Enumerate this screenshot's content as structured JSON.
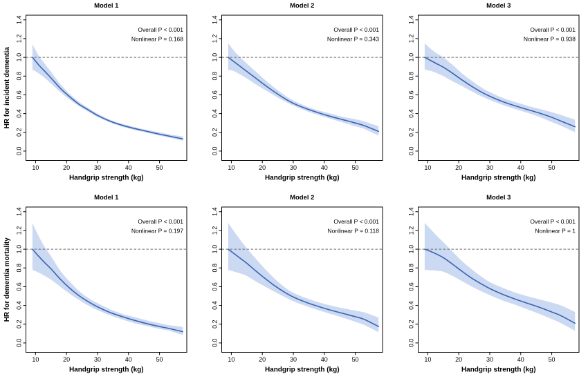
{
  "figure": {
    "background": "#ffffff",
    "layout": "2 rows x 3 columns of restricted cubic spline panels"
  },
  "colors": {
    "curve_line": "#3a63b2",
    "confidence_band": "#cbd9f2",
    "reference_line": "#6e6e6e",
    "axis": "#000000",
    "text": "#000000"
  },
  "shared": {
    "xlabel": "Handgrip strength (kg)",
    "x_ticks": [
      10,
      20,
      30,
      40,
      50
    ],
    "y_ticks": [
      0.0,
      0.2,
      0.4,
      0.6,
      0.8,
      1.0,
      1.2,
      1.4
    ],
    "xlim": [
      6.9,
      58.8
    ],
    "ylim": [
      -0.1,
      1.45
    ],
    "reference_y": 1.0
  },
  "chart_data": [
    {
      "type": "line",
      "title": "Model 1",
      "row": 0,
      "col": 0,
      "ylabel": "HR for incident dementia",
      "xlabel": "Handgrip strength (kg)",
      "overall_p": "Overall P < 0.001",
      "nonlinear_p": "Nonlinear P = 0.168",
      "x": [
        9,
        11,
        13,
        15,
        18,
        21,
        24,
        27,
        30,
        34,
        38,
        42,
        46,
        50,
        53,
        57.5
      ],
      "hr": [
        1.0,
        0.92,
        0.85,
        0.78,
        0.67,
        0.58,
        0.5,
        0.44,
        0.38,
        0.32,
        0.275,
        0.24,
        0.21,
        0.18,
        0.16,
        0.13
      ],
      "ci_lower": [
        0.87,
        0.83,
        0.78,
        0.72,
        0.63,
        0.55,
        0.48,
        0.42,
        0.365,
        0.305,
        0.26,
        0.225,
        0.195,
        0.165,
        0.145,
        0.11
      ],
      "ci_upper": [
        1.14,
        1.02,
        0.93,
        0.845,
        0.715,
        0.61,
        0.525,
        0.46,
        0.4,
        0.335,
        0.29,
        0.255,
        0.225,
        0.2,
        0.18,
        0.155
      ]
    },
    {
      "type": "line",
      "title": "Model 2",
      "row": 0,
      "col": 1,
      "ylabel": "",
      "xlabel": "Handgrip strength (kg)",
      "overall_p": "Overall P < 0.001",
      "nonlinear_p": "Nonlinear P = 0.343",
      "x": [
        9,
        11,
        13,
        15,
        18,
        21,
        24,
        27,
        30,
        34,
        38,
        42,
        46,
        50,
        53,
        57.5
      ],
      "hr": [
        1.0,
        0.95,
        0.9,
        0.85,
        0.775,
        0.7,
        0.63,
        0.565,
        0.51,
        0.455,
        0.41,
        0.37,
        0.335,
        0.3,
        0.27,
        0.21
      ],
      "ci_lower": [
        0.87,
        0.85,
        0.815,
        0.775,
        0.71,
        0.65,
        0.59,
        0.535,
        0.485,
        0.43,
        0.385,
        0.345,
        0.305,
        0.265,
        0.235,
        0.165
      ],
      "ci_upper": [
        1.15,
        1.065,
        0.995,
        0.935,
        0.845,
        0.755,
        0.675,
        0.6,
        0.54,
        0.48,
        0.435,
        0.4,
        0.365,
        0.34,
        0.315,
        0.265
      ]
    },
    {
      "type": "line",
      "title": "Model 3",
      "row": 0,
      "col": 2,
      "ylabel": "",
      "xlabel": "Handgrip strength (kg)",
      "overall_p": "Overall P < 0.001",
      "nonlinear_p": "Nonlinear P = 0.938",
      "x": [
        9,
        11,
        13,
        15,
        18,
        21,
        24,
        27,
        30,
        34,
        38,
        42,
        46,
        50,
        53,
        57.5
      ],
      "hr": [
        1.0,
        0.965,
        0.93,
        0.895,
        0.83,
        0.76,
        0.695,
        0.635,
        0.585,
        0.53,
        0.485,
        0.445,
        0.405,
        0.36,
        0.32,
        0.26
      ],
      "ci_lower": [
        0.87,
        0.855,
        0.83,
        0.8,
        0.745,
        0.695,
        0.64,
        0.59,
        0.545,
        0.495,
        0.45,
        0.41,
        0.365,
        0.31,
        0.27,
        0.2
      ],
      "ci_upper": [
        1.15,
        1.09,
        1.04,
        1.0,
        0.92,
        0.83,
        0.755,
        0.685,
        0.63,
        0.57,
        0.525,
        0.485,
        0.45,
        0.415,
        0.385,
        0.335
      ]
    },
    {
      "type": "line",
      "title": "Model 1",
      "row": 1,
      "col": 0,
      "ylabel": "HR for dementia mortality",
      "xlabel": "Handgrip strength (kg)",
      "overall_p": "Overall P < 0.001",
      "nonlinear_p": "Nonlinear P = 0.197",
      "x": [
        9,
        11,
        13,
        15,
        18,
        21,
        24,
        27,
        30,
        34,
        38,
        42,
        46,
        50,
        53,
        57.5
      ],
      "hr": [
        1.0,
        0.925,
        0.855,
        0.79,
        0.68,
        0.585,
        0.505,
        0.44,
        0.385,
        0.325,
        0.28,
        0.24,
        0.205,
        0.175,
        0.155,
        0.12
      ],
      "ci_lower": [
        0.78,
        0.75,
        0.715,
        0.675,
        0.6,
        0.525,
        0.46,
        0.4,
        0.35,
        0.295,
        0.25,
        0.21,
        0.18,
        0.15,
        0.13,
        0.085
      ],
      "ci_upper": [
        1.28,
        1.14,
        1.02,
        0.925,
        0.77,
        0.655,
        0.555,
        0.48,
        0.425,
        0.36,
        0.31,
        0.275,
        0.24,
        0.21,
        0.19,
        0.17
      ]
    },
    {
      "type": "line",
      "title": "Model 2",
      "row": 1,
      "col": 1,
      "ylabel": "",
      "xlabel": "Handgrip strength (kg)",
      "overall_p": "Overall P < 0.001",
      "nonlinear_p": "Nonlinear P = 0.118",
      "x": [
        9,
        11,
        13,
        15,
        18,
        21,
        24,
        27,
        30,
        34,
        38,
        42,
        46,
        50,
        53,
        57.5
      ],
      "hr": [
        1.0,
        0.95,
        0.9,
        0.85,
        0.765,
        0.685,
        0.61,
        0.545,
        0.49,
        0.435,
        0.39,
        0.35,
        0.315,
        0.28,
        0.25,
        0.175
      ],
      "ci_lower": [
        0.78,
        0.76,
        0.74,
        0.715,
        0.655,
        0.6,
        0.545,
        0.495,
        0.445,
        0.395,
        0.35,
        0.31,
        0.27,
        0.225,
        0.19,
        0.115
      ],
      "ci_upper": [
        1.28,
        1.185,
        1.095,
        1.01,
        0.895,
        0.785,
        0.685,
        0.6,
        0.535,
        0.48,
        0.435,
        0.4,
        0.37,
        0.345,
        0.325,
        0.27
      ]
    },
    {
      "type": "line",
      "title": "Model 3",
      "row": 1,
      "col": 2,
      "ylabel": "",
      "xlabel": "Handgrip strength (kg)",
      "overall_p": "Overall P < 0.001",
      "nonlinear_p": "Nonlinear P = 1",
      "x": [
        9,
        11,
        13,
        15,
        18,
        21,
        24,
        27,
        30,
        34,
        38,
        42,
        46,
        50,
        53,
        57.5
      ],
      "hr": [
        1.0,
        0.975,
        0.945,
        0.91,
        0.84,
        0.765,
        0.695,
        0.635,
        0.58,
        0.52,
        0.47,
        0.425,
        0.38,
        0.33,
        0.29,
        0.21
      ],
      "ci_lower": [
        0.78,
        0.775,
        0.77,
        0.76,
        0.715,
        0.66,
        0.605,
        0.555,
        0.51,
        0.455,
        0.41,
        0.36,
        0.31,
        0.255,
        0.21,
        0.13
      ],
      "ci_upper": [
        1.28,
        1.21,
        1.14,
        1.075,
        0.975,
        0.875,
        0.79,
        0.715,
        0.65,
        0.59,
        0.54,
        0.5,
        0.465,
        0.43,
        0.4,
        0.33
      ]
    }
  ]
}
